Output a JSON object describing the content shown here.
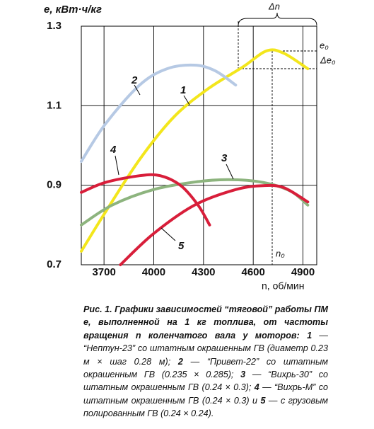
{
  "chart_data": {
    "type": "line",
    "ylabel": "e, кВт·ч/кг",
    "xlabel": "n, об/мин",
    "xlim": [
      3563,
      4983
    ],
    "ylim": [
      0.7,
      1.3
    ],
    "xticks": [
      3700,
      4000,
      4300,
      4600,
      4900
    ],
    "yticks": [
      1.3,
      1.1,
      0.9,
      0.7
    ],
    "grid": true,
    "series": [
      {
        "name": "1",
        "color": "#f3e61c",
        "x": [
          3563,
          3708,
          3915,
          4122,
          4329,
          4536,
          4681,
          4784,
          4929
        ],
        "values": [
          0.734,
          0.832,
          0.965,
          1.072,
          1.143,
          1.197,
          1.238,
          1.232,
          1.193
        ]
      },
      {
        "name": "2",
        "color": "#b6c9e4",
        "x": [
          3563,
          3708,
          3915,
          4080,
          4246,
          4370,
          4494
        ],
        "values": [
          0.96,
          1.054,
          1.152,
          1.193,
          1.202,
          1.188,
          1.152
        ]
      },
      {
        "name": "3",
        "color": "#8db47e",
        "x": [
          3563,
          3749,
          3998,
          4246,
          4453,
          4660,
          4826,
          4929
        ],
        "values": [
          0.8,
          0.85,
          0.889,
          0.908,
          0.914,
          0.907,
          0.885,
          0.85
        ]
      },
      {
        "name": "4",
        "color": "#d81e3a",
        "x": [
          3563,
          3708,
          3915,
          4039,
          4163,
          4267,
          4337
        ],
        "values": [
          0.882,
          0.907,
          0.924,
          0.924,
          0.899,
          0.85,
          0.8
        ]
      },
      {
        "name": "5",
        "color": "#d81e3a",
        "x": [
          3799,
          3998,
          4246,
          4494,
          4660,
          4784,
          4929
        ],
        "values": [
          0.7,
          0.778,
          0.85,
          0.889,
          0.899,
          0.894,
          0.858
        ]
      }
    ],
    "annotations": [
      "Δn",
      "e₀",
      "Δe₀",
      "n₀"
    ]
  },
  "caption": {
    "title": "Рис. 1. Графики зависимостей “тяговой” работы ПМ e, выполненной на 1 кг топлива, от частоты вращения n коленчатого вала у моторов:",
    "items": [
      {
        "n": "1",
        "text": " — “Нептун-23” со штатным окрашенным ГВ (диаметр 0.23 м × шаг 0.28 м); "
      },
      {
        "n": "2",
        "text": " — “Привет-22” со штатным окрашенным ГВ (0.235 × 0.285); "
      },
      {
        "n": "3",
        "text": " — “Вихрь-30” со штатным окрашенным ГВ (0.24 × 0.3); "
      },
      {
        "n": "4",
        "text": " — “Вихрь-М” со штатным окрашенным ГВ (0.24 × 0.3) и "
      },
      {
        "n": "5",
        "text": " — с грузовым полированным ГВ (0.24 × 0.24)."
      }
    ]
  }
}
